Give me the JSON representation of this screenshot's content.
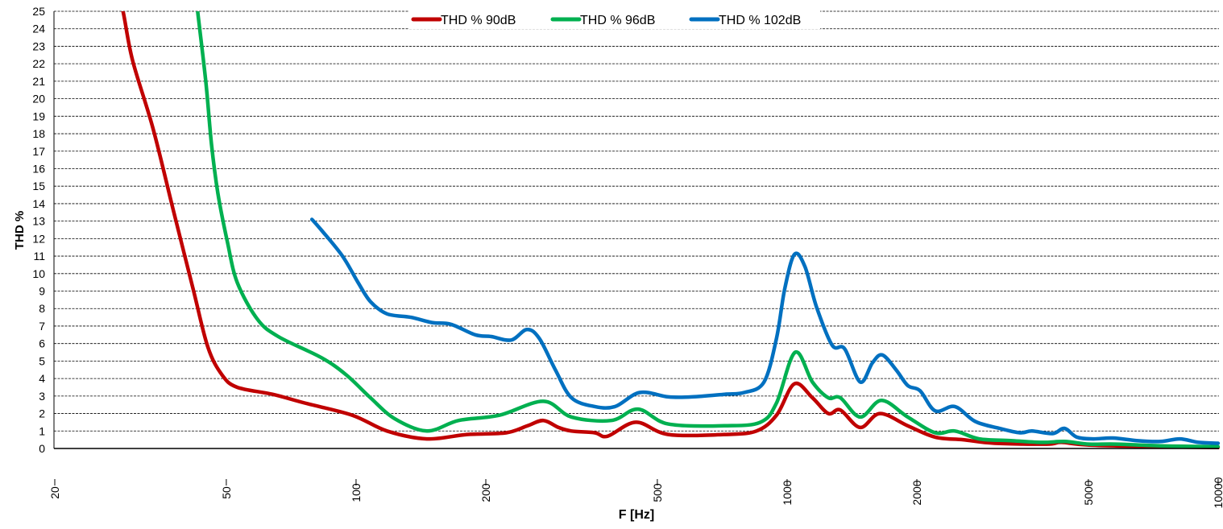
{
  "chart_data": {
    "type": "line",
    "title": "",
    "xlabel": "F [Hz]",
    "ylabel": "THD %",
    "xscale": "log",
    "xlim": [
      20,
      10000
    ],
    "ylim": [
      0,
      25
    ],
    "xticks": [
      20,
      50,
      100,
      200,
      500,
      1000,
      2000,
      5000,
      10000
    ],
    "xtick_labels": [
      "20",
      "50",
      "100",
      "200",
      "500",
      "1000",
      "2000",
      "5000",
      "10000"
    ],
    "yticks": [
      0,
      1,
      2,
      3,
      4,
      5,
      6,
      7,
      8,
      9,
      10,
      11,
      12,
      13,
      14,
      15,
      16,
      17,
      18,
      19,
      20,
      21,
      22,
      23,
      24,
      25
    ],
    "ytick_labels": [
      "0",
      "1",
      "2",
      "3",
      "4",
      "5",
      "6",
      "7",
      "8",
      "9",
      "10",
      "11",
      "12",
      "13",
      "14",
      "15",
      "16",
      "17",
      "18",
      "19",
      "20",
      "21",
      "22",
      "23",
      "24",
      "25"
    ],
    "grid": "horizontal dashed",
    "legend_position": "top-center",
    "series": [
      {
        "name": "THD % 90dB",
        "color": "#C00000",
        "points": [
          [
            27.5,
            27
          ],
          [
            28.8,
            25
          ],
          [
            30.3,
            22.2
          ],
          [
            33.8,
            18.3
          ],
          [
            37.6,
            13.7
          ],
          [
            41.9,
            9.1
          ],
          [
            45.3,
            5.8
          ],
          [
            48.9,
            4.2
          ],
          [
            53,
            3.5
          ],
          [
            64,
            3.1
          ],
          [
            76,
            2.6
          ],
          [
            98,
            1.9
          ],
          [
            118,
            1.0
          ],
          [
            146,
            0.55
          ],
          [
            181,
            0.8
          ],
          [
            223,
            0.9
          ],
          [
            250,
            1.3
          ],
          [
            272,
            1.6
          ],
          [
            295,
            1.2
          ],
          [
            316,
            1.0
          ],
          [
            358,
            0.9
          ],
          [
            383,
            0.7
          ],
          [
            446,
            1.5
          ],
          [
            530,
            0.8
          ],
          [
            716,
            0.8
          ],
          [
            849,
            1.0
          ],
          [
            945,
            1.9
          ],
          [
            1040,
            3.7
          ],
          [
            1145,
            2.9
          ],
          [
            1246,
            2.0
          ],
          [
            1329,
            2.2
          ],
          [
            1478,
            1.2
          ],
          [
            1642,
            2.0
          ],
          [
            1905,
            1.3
          ],
          [
            2206,
            0.65
          ],
          [
            2560,
            0.5
          ],
          [
            3030,
            0.3
          ],
          [
            4000,
            0.25
          ],
          [
            4330,
            0.35
          ],
          [
            5020,
            0.2
          ],
          [
            7350,
            0.1
          ],
          [
            10000,
            0.05
          ]
        ]
      },
      {
        "name": "THD % 96dB",
        "color": "#00B050",
        "points": [
          [
            42,
            27
          ],
          [
            42.9,
            25
          ],
          [
            44.8,
            21
          ],
          [
            46.2,
            17.4
          ],
          [
            47.8,
            14.6
          ],
          [
            50.3,
            11.8
          ],
          [
            53,
            9.5
          ],
          [
            59,
            7.4
          ],
          [
            66,
            6.4
          ],
          [
            83,
            5.2
          ],
          [
            95,
            4.2
          ],
          [
            108,
            2.9
          ],
          [
            123,
            1.7
          ],
          [
            146,
            1.0
          ],
          [
            173,
            1.6
          ],
          [
            215,
            1.9
          ],
          [
            272,
            2.7
          ],
          [
            316,
            1.8
          ],
          [
            391,
            1.6
          ],
          [
            451,
            2.25
          ],
          [
            530,
            1.4
          ],
          [
            716,
            1.3
          ],
          [
            867,
            1.5
          ],
          [
            945,
            2.6
          ],
          [
            1044,
            5.5
          ],
          [
            1145,
            3.8
          ],
          [
            1246,
            2.9
          ],
          [
            1329,
            2.9
          ],
          [
            1478,
            1.8
          ],
          [
            1656,
            2.75
          ],
          [
            1905,
            1.8
          ],
          [
            2206,
            0.9
          ],
          [
            2450,
            1.0
          ],
          [
            2790,
            0.55
          ],
          [
            3300,
            0.45
          ],
          [
            3900,
            0.35
          ],
          [
            4400,
            0.4
          ],
          [
            5020,
            0.25
          ],
          [
            5800,
            0.25
          ],
          [
            7350,
            0.15
          ],
          [
            10000,
            0.1
          ]
        ]
      },
      {
        "name": "THD % 102dB",
        "color": "#0070C0",
        "points": [
          [
            79,
            13.1
          ],
          [
            83,
            12.5
          ],
          [
            93,
            11
          ],
          [
            101,
            9.5
          ],
          [
            108,
            8.4
          ],
          [
            118,
            7.7
          ],
          [
            134,
            7.5
          ],
          [
            150,
            7.2
          ],
          [
            166,
            7.1
          ],
          [
            189,
            6.5
          ],
          [
            206,
            6.4
          ],
          [
            229,
            6.2
          ],
          [
            249,
            6.8
          ],
          [
            266,
            6.3
          ],
          [
            290,
            4.5
          ],
          [
            316,
            2.9
          ],
          [
            358,
            2.4
          ],
          [
            399,
            2.4
          ],
          [
            455,
            3.2
          ],
          [
            530,
            2.95
          ],
          [
            602,
            2.95
          ],
          [
            716,
            3.1
          ],
          [
            795,
            3.2
          ],
          [
            884,
            3.8
          ],
          [
            945,
            6.3
          ],
          [
            987,
            9.1
          ],
          [
            1040,
            11.1
          ],
          [
            1100,
            10.4
          ],
          [
            1170,
            8.1
          ],
          [
            1273,
            5.9
          ],
          [
            1360,
            5.7
          ],
          [
            1478,
            3.8
          ],
          [
            1578,
            4.9
          ],
          [
            1663,
            5.35
          ],
          [
            1790,
            4.5
          ],
          [
            1905,
            3.6
          ],
          [
            2035,
            3.3
          ],
          [
            2206,
            2.15
          ],
          [
            2450,
            2.4
          ],
          [
            2730,
            1.55
          ],
          [
            3110,
            1.15
          ],
          [
            3470,
            0.9
          ],
          [
            3700,
            1.0
          ],
          [
            4130,
            0.85
          ],
          [
            4400,
            1.15
          ],
          [
            4700,
            0.65
          ],
          [
            5130,
            0.55
          ],
          [
            5700,
            0.6
          ],
          [
            6470,
            0.45
          ],
          [
            7350,
            0.4
          ],
          [
            8150,
            0.55
          ],
          [
            9000,
            0.35
          ],
          [
            10000,
            0.3
          ]
        ]
      }
    ]
  }
}
